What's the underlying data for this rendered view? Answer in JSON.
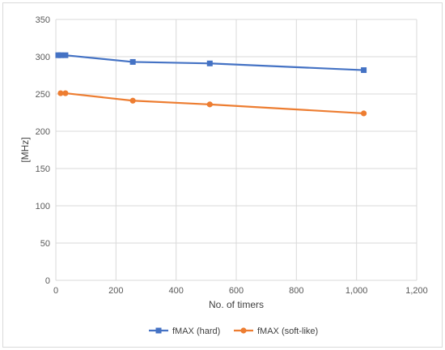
{
  "chart_data": {
    "type": "line",
    "title": "",
    "xlabel": "No. of timers",
    "ylabel": "[MHz]",
    "xlim": [
      0,
      1200
    ],
    "ylim": [
      0,
      350
    ],
    "xticks": [
      0,
      200,
      400,
      600,
      800,
      1000,
      1200
    ],
    "xtick_labels": [
      "0",
      "200",
      "400",
      "600",
      "800",
      "1,000",
      "1,200"
    ],
    "yticks": [
      0,
      50,
      100,
      150,
      200,
      250,
      300,
      350
    ],
    "ytick_labels": [
      "0",
      "50",
      "100",
      "150",
      "200",
      "250",
      "300",
      "350"
    ],
    "grid": true,
    "legend_position": "bottom",
    "series": [
      {
        "name": "fMAX (hard)",
        "color": "#4472c4",
        "marker": "square",
        "x": [
          8,
          16,
          32,
          256,
          512,
          1024
        ],
        "y": [
          302,
          302,
          302,
          293,
          291,
          282
        ]
      },
      {
        "name": "fMAX (soft-like)",
        "color": "#ed7d31",
        "marker": "circle",
        "x": [
          16,
          32,
          256,
          512,
          1024
        ],
        "y": [
          251,
          251,
          241,
          236,
          224
        ]
      }
    ]
  }
}
